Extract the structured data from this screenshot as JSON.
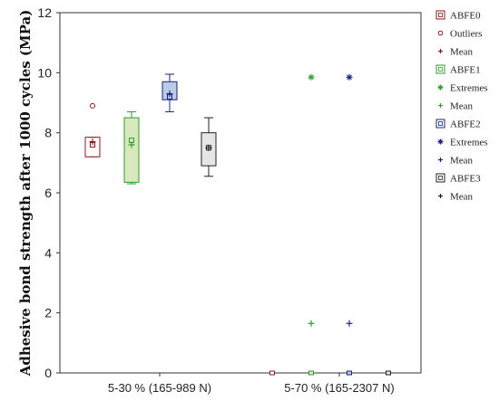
{
  "chart_data": {
    "type": "box",
    "ylabel": "Adhesive bond strength after 1000 cycles (MPa)",
    "xlabel": "",
    "ylim": [
      0,
      12
    ],
    "yticks": [
      0,
      2,
      4,
      6,
      8,
      10,
      12
    ],
    "categories": [
      "5-30 % (165-989 N)",
      "5-70 % (165-2307 N)"
    ],
    "grid": false,
    "legend_position": "right",
    "series": [
      {
        "name": "ABFE0",
        "color": "#8b1a1a",
        "fill": "#ffffff",
        "boxes": [
          {
            "category": "5-30 % (165-989 N)",
            "whisker_low": 7.2,
            "q1": 7.2,
            "median": 7.6,
            "q3": 7.85,
            "whisker_high": 7.85,
            "mean": 7.7,
            "outliers": [
              8.9
            ],
            "extremes": []
          },
          {
            "category": "5-70 % (165-2307 N)",
            "whisker_low": 0,
            "q1": 0,
            "median": 0,
            "q3": 0,
            "whisker_high": 0,
            "mean": 0,
            "outliers": [],
            "extremes": []
          }
        ]
      },
      {
        "name": "ABFE1",
        "color": "#2e9e2e",
        "fill": "#d6e8bc",
        "boxes": [
          {
            "category": "5-30 % (165-989 N)",
            "whisker_low": 6.3,
            "q1": 6.35,
            "median": 7.75,
            "q3": 8.5,
            "whisker_high": 8.7,
            "mean": 7.6,
            "outliers": [],
            "extremes": []
          },
          {
            "category": "5-70 % (165-2307 N)",
            "whisker_low": 0,
            "q1": 0,
            "median": 0,
            "q3": 0,
            "whisker_high": 0,
            "mean": 1.65,
            "outliers": [],
            "extremes": [
              9.85
            ]
          }
        ]
      },
      {
        "name": "ABFE2",
        "color": "#1a237e",
        "fill": "#b8cce4",
        "boxes": [
          {
            "category": "5-30 % (165-989 N)",
            "whisker_low": 8.7,
            "q1": 9.1,
            "median": 9.2,
            "q3": 9.7,
            "whisker_high": 9.95,
            "mean": 9.3,
            "outliers": [],
            "extremes": []
          },
          {
            "category": "5-70 % (165-2307 N)",
            "whisker_low": 0,
            "q1": 0,
            "median": 0,
            "q3": 0,
            "whisker_high": 0,
            "mean": 1.65,
            "outliers": [],
            "extremes": [
              9.85
            ]
          }
        ]
      },
      {
        "name": "ABFE3",
        "color": "#222222",
        "fill": "#e6e6e6",
        "boxes": [
          {
            "category": "5-30 % (165-989 N)",
            "whisker_low": 6.55,
            "q1": 6.9,
            "median": 7.5,
            "q3": 8.0,
            "whisker_high": 8.5,
            "mean": 7.5,
            "outliers": [],
            "extremes": []
          },
          {
            "category": "5-70 % (165-2307 N)",
            "whisker_low": 0,
            "q1": 0,
            "median": 0,
            "q3": 0,
            "whisker_high": 0,
            "mean": 0,
            "outliers": [],
            "extremes": []
          }
        ]
      }
    ],
    "legend": [
      {
        "label": "ABFE0",
        "symbol": "box",
        "color": "#8b1a1a"
      },
      {
        "label": "Outliers",
        "symbol": "circle",
        "color": "#8b1a1a"
      },
      {
        "label": "Mean",
        "symbol": "plus",
        "color": "#8b1a1a"
      },
      {
        "label": "ABFE1",
        "symbol": "box",
        "color": "#2e9e2e"
      },
      {
        "label": "Extremes",
        "symbol": "star",
        "color": "#2e9e2e"
      },
      {
        "label": "Mean",
        "symbol": "plus",
        "color": "#2e9e2e"
      },
      {
        "label": "ABFE2",
        "symbol": "box",
        "color": "#1a237e"
      },
      {
        "label": "Extremes",
        "symbol": "star",
        "color": "#1a237e"
      },
      {
        "label": "Mean",
        "symbol": "plus",
        "color": "#1a237e"
      },
      {
        "label": "ABFE3",
        "symbol": "box",
        "color": "#222222"
      },
      {
        "label": "Mean",
        "symbol": "plus",
        "color": "#222222"
      }
    ]
  }
}
